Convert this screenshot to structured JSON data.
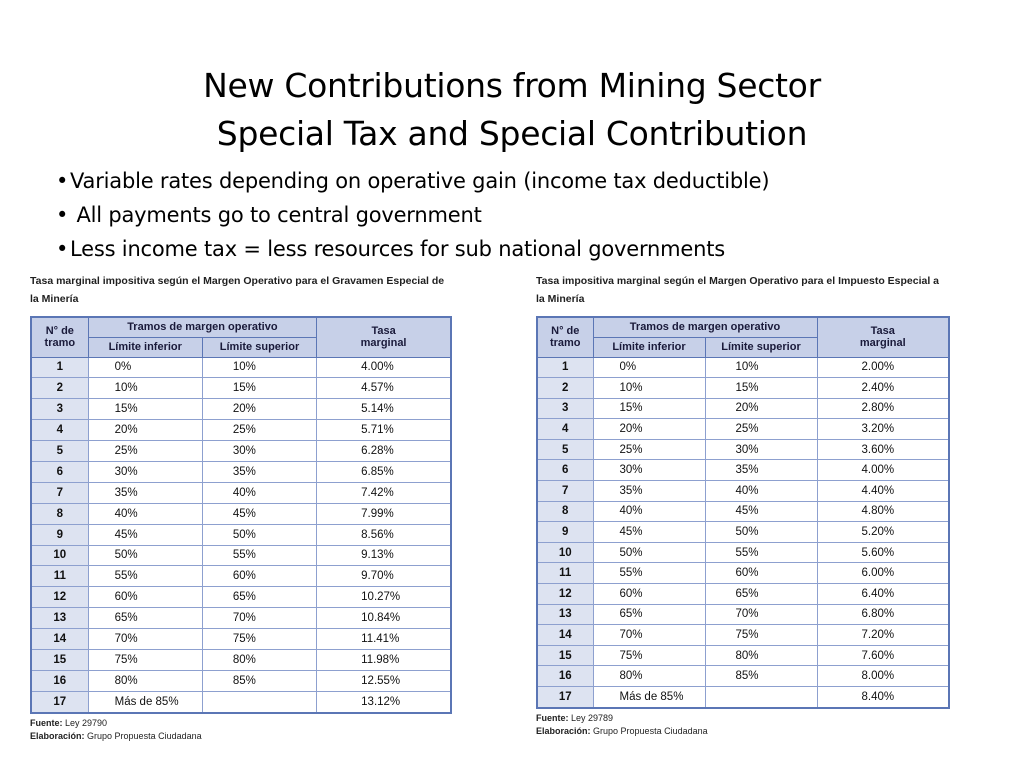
{
  "slide": {
    "title_line1": "New Contributions from Mining Sector",
    "title_line2": "Special Tax and Special Contribution",
    "bullets": [
      "Variable rates depending on operative gain (income tax deductible)",
      " All payments go to central government",
      "Less income tax = less resources for sub national governments"
    ]
  },
  "tables": [
    {
      "caption": "Tasa marginal impositiva según el Margen Operativo para el Gravamen Especial de la Minería",
      "headers": {
        "num": "N° de tramo",
        "group": "Tramos de margen operativo",
        "lower": "Límite inferior",
        "upper": "Límite superior",
        "rate": "Tasa marginal"
      },
      "rows": [
        [
          "1",
          "0%",
          "10%",
          "4.00%"
        ],
        [
          "2",
          "10%",
          "15%",
          "4.57%"
        ],
        [
          "3",
          "15%",
          "20%",
          "5.14%"
        ],
        [
          "4",
          "20%",
          "25%",
          "5.71%"
        ],
        [
          "5",
          "25%",
          "30%",
          "6.28%"
        ],
        [
          "6",
          "30%",
          "35%",
          "6.85%"
        ],
        [
          "7",
          "35%",
          "40%",
          "7.42%"
        ],
        [
          "8",
          "40%",
          "45%",
          "7.99%"
        ],
        [
          "9",
          "45%",
          "50%",
          "8.56%"
        ],
        [
          "10",
          "50%",
          "55%",
          "9.13%"
        ],
        [
          "11",
          "55%",
          "60%",
          "9.70%"
        ],
        [
          "12",
          "60%",
          "65%",
          "10.27%"
        ],
        [
          "13",
          "65%",
          "70%",
          "10.84%"
        ],
        [
          "14",
          "70%",
          "75%",
          "11.41%"
        ],
        [
          "15",
          "75%",
          "80%",
          "11.98%"
        ],
        [
          "16",
          "80%",
          "85%",
          "12.55%"
        ],
        [
          "17",
          "Más de 85%",
          "",
          "13.12%"
        ]
      ],
      "source_label": "Fuente:",
      "source_value": "Ley 29790",
      "elab_label": "Elaboración:",
      "elab_value": "Grupo Propuesta Ciudadana"
    },
    {
      "caption": "Tasa impositiva marginal según el Margen Operativo para el Impuesto Especial a la Minería",
      "headers": {
        "num": "N° de tramo",
        "group": "Tramos de margen operativo",
        "lower": "Límite inferior",
        "upper": "Límite superior",
        "rate": "Tasa marginal"
      },
      "rows": [
        [
          "1",
          "0%",
          "10%",
          "2.00%"
        ],
        [
          "2",
          "10%",
          "15%",
          "2.40%"
        ],
        [
          "3",
          "15%",
          "20%",
          "2.80%"
        ],
        [
          "4",
          "20%",
          "25%",
          "3.20%"
        ],
        [
          "5",
          "25%",
          "30%",
          "3.60%"
        ],
        [
          "6",
          "30%",
          "35%",
          "4.00%"
        ],
        [
          "7",
          "35%",
          "40%",
          "4.40%"
        ],
        [
          "8",
          "40%",
          "45%",
          "4.80%"
        ],
        [
          "9",
          "45%",
          "50%",
          "5.20%"
        ],
        [
          "10",
          "50%",
          "55%",
          "5.60%"
        ],
        [
          "11",
          "55%",
          "60%",
          "6.00%"
        ],
        [
          "12",
          "60%",
          "65%",
          "6.40%"
        ],
        [
          "13",
          "65%",
          "70%",
          "6.80%"
        ],
        [
          "14",
          "70%",
          "75%",
          "7.20%"
        ],
        [
          "15",
          "75%",
          "80%",
          "7.60%"
        ],
        [
          "16",
          "80%",
          "85%",
          "8.00%"
        ],
        [
          "17",
          "Más de 85%",
          "",
          "8.40%"
        ]
      ],
      "source_label": "Fuente:",
      "source_value": "Ley 29789",
      "elab_label": "Elaboración:",
      "elab_value": "Grupo Propuesta Ciudadana"
    }
  ]
}
